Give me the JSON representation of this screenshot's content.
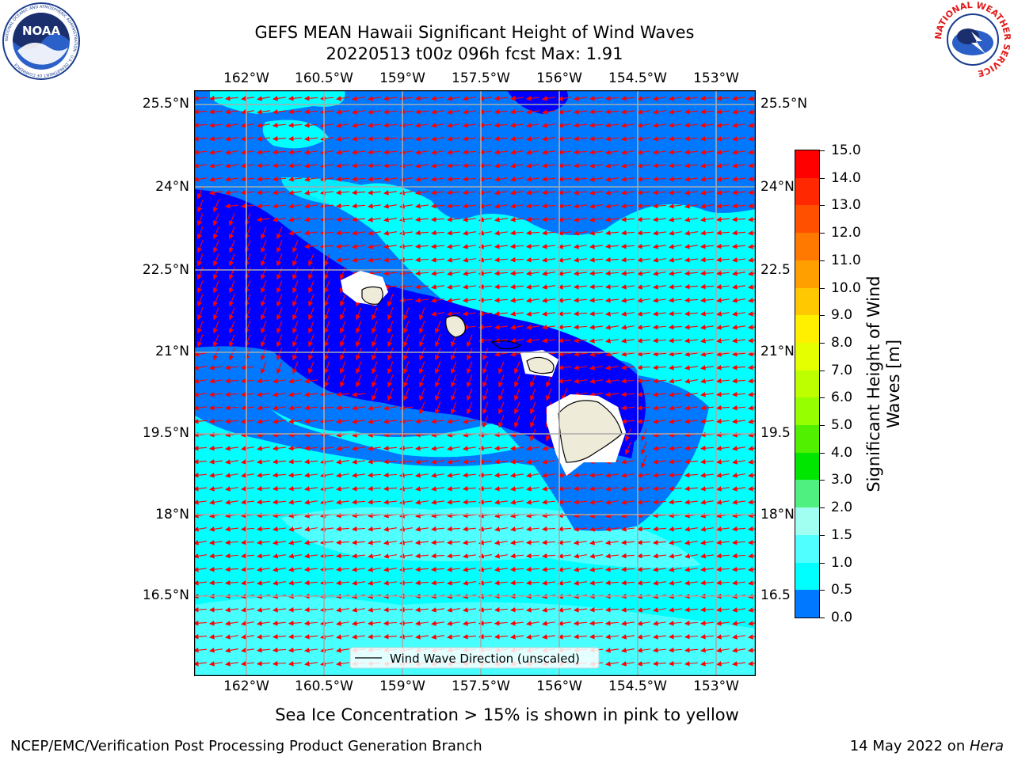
{
  "header": {
    "title_line1": "GEFS MEAN Hawaii Significant Height of Wind Waves",
    "title_line2": "20220513 t00z 096h fcst   Max: 1.91"
  },
  "logos": {
    "left": {
      "icon": "noaa-logo",
      "text": "NOAA",
      "ring_text": "NATIONAL OCEANIC AND ATMOSPHERIC ADMINISTRATION · U.S. DEPARTMENT OF COMMERCE"
    },
    "right": {
      "icon": "nws-logo",
      "ring_text": "NATIONAL WEATHER SERVICE"
    }
  },
  "map": {
    "lon_labels": [
      "162°W",
      "160.5°W",
      "159°W",
      "157.5°W",
      "156°W",
      "154.5°W",
      "153°W"
    ],
    "lat_labels": [
      "25.5°N",
      "24°N",
      "22.5°N",
      "21°N",
      "19.5°N",
      "18°N",
      "16.5°N"
    ],
    "right_lat_labels": [
      "25.5°N",
      "24°N",
      "22.5",
      "21°N",
      "19.5",
      "18°N",
      "16.5"
    ],
    "legend_label": "Wind Wave Direction (unscaled)",
    "arrow_color": "#ff0000",
    "land_color": "#efebd9"
  },
  "colorbar": {
    "label_line1": "Significant Height of Wind",
    "label_line2": "Waves [m]",
    "ticks": [
      "15.0",
      "14.0",
      "13.0",
      "12.0",
      "11.0",
      "10.0",
      "9.0",
      "8.0",
      "7.0",
      "6.0",
      "5.0",
      "4.0",
      "3.0",
      "2.0",
      "1.5",
      "1.0",
      "0.5",
      "0.0"
    ],
    "colors_top_to_bottom": [
      "#ff0000",
      "#ff2800",
      "#ff5000",
      "#ff7800",
      "#ffa000",
      "#ffc800",
      "#fff000",
      "#e6ff00",
      "#beff00",
      "#96ff00",
      "#50f000",
      "#00e600",
      "#50f080",
      "#a0fff0",
      "#50ffff",
      "#00ffff",
      "#0078ff",
      "#0000ff"
    ]
  },
  "notes": {
    "sea_ice": "Sea Ice Concentration > 15% is shown in pink to yellow"
  },
  "footer": {
    "left": "NCEP/EMC/Verification Post Processing Product Generation Branch",
    "right_prefix": "14 May 2022 on ",
    "right_machine": "Hera"
  }
}
